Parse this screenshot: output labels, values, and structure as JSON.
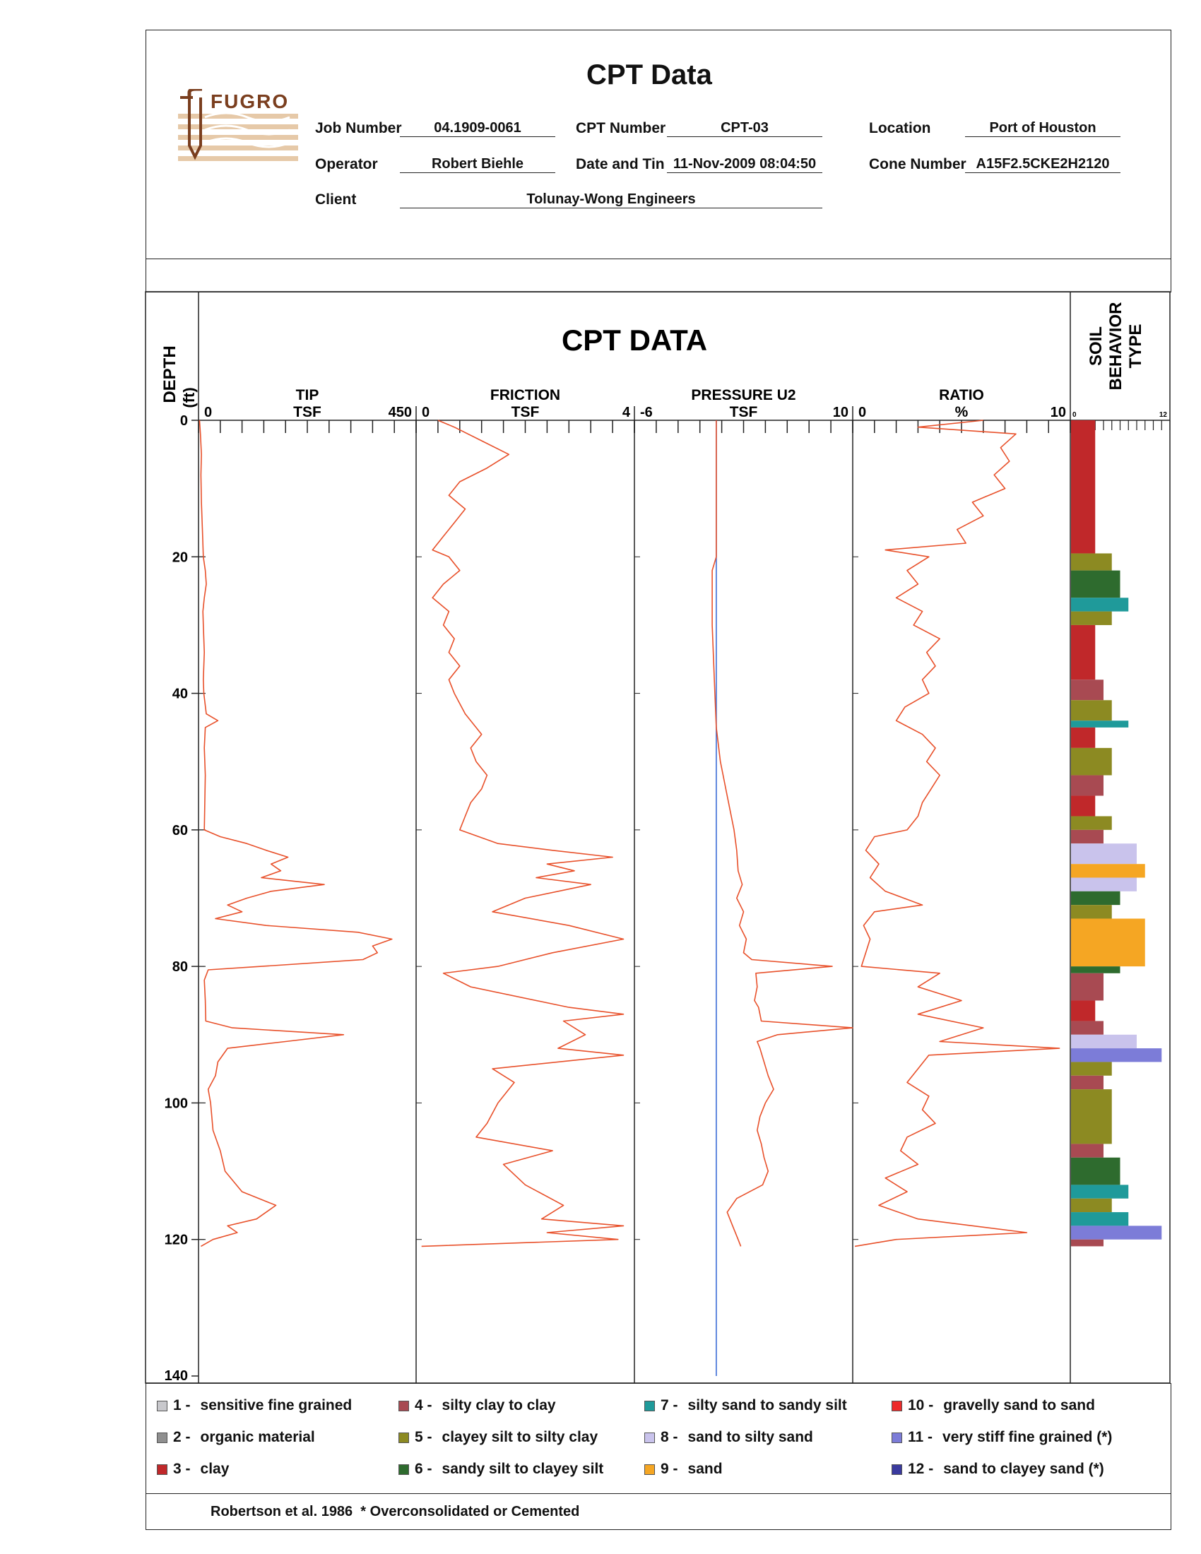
{
  "header": {
    "title": "CPT Data",
    "logo_text": "FUGRO",
    "job_number_label": "Job Number",
    "job_number": "04.1909-0061",
    "cpt_number_label": "CPT Number",
    "cpt_number": "CPT-03",
    "location_label": "Location",
    "location": "Port of Houston",
    "operator_label": "Operator",
    "operator": "Robert Biehle",
    "date_label": "Date and Tin",
    "date": "11-Nov-2009 08:04:50",
    "cone_label": "Cone Number",
    "cone_number": "A15F2.5CKE2H2120",
    "client_label": "Client",
    "client": "Tolunay-Wong Engineers"
  },
  "chart_data": {
    "type": "line",
    "title": "CPT DATA",
    "depth_axis": {
      "label": "DEPTH",
      "unit": "(ft)",
      "range": [
        0,
        140
      ],
      "ticks": [
        0,
        20,
        40,
        60,
        80,
        100,
        120,
        140
      ]
    },
    "panels": [
      {
        "name": "TIP",
        "unit": "TSF",
        "min_label": "0",
        "max_label": "450",
        "range": [
          0,
          450
        ],
        "color": "#e8502a",
        "points": [
          [
            0,
            2
          ],
          [
            2,
            4
          ],
          [
            5,
            6
          ],
          [
            8,
            5
          ],
          [
            12,
            6
          ],
          [
            16,
            8
          ],
          [
            20,
            10
          ],
          [
            22,
            14
          ],
          [
            24,
            16
          ],
          [
            26,
            12
          ],
          [
            28,
            9
          ],
          [
            30,
            10
          ],
          [
            34,
            12
          ],
          [
            38,
            10
          ],
          [
            40,
            11
          ],
          [
            43,
            16
          ],
          [
            44,
            40
          ],
          [
            45,
            14
          ],
          [
            48,
            12
          ],
          [
            52,
            14
          ],
          [
            56,
            13
          ],
          [
            60,
            12
          ],
          [
            61,
            45
          ],
          [
            62,
            100
          ],
          [
            63,
            140
          ],
          [
            64,
            185
          ],
          [
            65,
            150
          ],
          [
            66,
            170
          ],
          [
            67,
            130
          ],
          [
            68,
            260
          ],
          [
            69,
            150
          ],
          [
            70,
            100
          ],
          [
            71,
            60
          ],
          [
            72,
            90
          ],
          [
            73,
            35
          ],
          [
            74,
            140
          ],
          [
            75,
            330
          ],
          [
            76,
            400
          ],
          [
            77,
            360
          ],
          [
            78,
            370
          ],
          [
            79,
            340
          ],
          [
            80,
            130
          ],
          [
            80.5,
            20
          ],
          [
            82,
            12
          ],
          [
            85,
            14
          ],
          [
            88,
            15
          ],
          [
            89,
            70
          ],
          [
            90,
            300
          ],
          [
            91,
            180
          ],
          [
            92,
            60
          ],
          [
            94,
            40
          ],
          [
            96,
            35
          ],
          [
            98,
            20
          ],
          [
            100,
            25
          ],
          [
            104,
            30
          ],
          [
            107,
            45
          ],
          [
            110,
            55
          ],
          [
            113,
            90
          ],
          [
            115,
            160
          ],
          [
            117,
            120
          ],
          [
            118,
            60
          ],
          [
            119,
            80
          ],
          [
            120,
            30
          ],
          [
            121,
            5
          ]
        ]
      },
      {
        "name": "FRICTION",
        "unit": "TSF",
        "min_label": "0",
        "max_label": "4",
        "range": [
          0,
          4
        ],
        "color": "#e8502a",
        "points": [
          [
            0,
            0.4
          ],
          [
            1,
            0.7
          ],
          [
            3,
            1.2
          ],
          [
            5,
            1.7
          ],
          [
            7,
            1.3
          ],
          [
            9,
            0.8
          ],
          [
            11,
            0.6
          ],
          [
            13,
            0.9
          ],
          [
            15,
            0.7
          ],
          [
            17,
            0.5
          ],
          [
            19,
            0.3
          ],
          [
            20,
            0.6
          ],
          [
            22,
            0.8
          ],
          [
            24,
            0.5
          ],
          [
            26,
            0.3
          ],
          [
            28,
            0.6
          ],
          [
            30,
            0.5
          ],
          [
            32,
            0.7
          ],
          [
            34,
            0.6
          ],
          [
            36,
            0.8
          ],
          [
            38,
            0.6
          ],
          [
            40,
            0.7
          ],
          [
            43,
            0.9
          ],
          [
            46,
            1.2
          ],
          [
            48,
            1.0
          ],
          [
            50,
            1.1
          ],
          [
            52,
            1.3
          ],
          [
            54,
            1.2
          ],
          [
            56,
            1.0
          ],
          [
            58,
            0.9
          ],
          [
            60,
            0.8
          ],
          [
            62,
            1.5
          ],
          [
            63,
            2.5
          ],
          [
            64,
            3.6
          ],
          [
            65,
            2.4
          ],
          [
            66,
            2.9
          ],
          [
            67,
            2.2
          ],
          [
            68,
            3.2
          ],
          [
            70,
            2.0
          ],
          [
            72,
            1.4
          ],
          [
            74,
            2.8
          ],
          [
            76,
            3.8
          ],
          [
            78,
            2.5
          ],
          [
            80,
            1.5
          ],
          [
            81,
            0.5
          ],
          [
            83,
            1.0
          ],
          [
            86,
            2.8
          ],
          [
            87,
            3.8
          ],
          [
            88,
            2.7
          ],
          [
            90,
            3.1
          ],
          [
            92,
            2.6
          ],
          [
            93,
            3.8
          ],
          [
            95,
            1.4
          ],
          [
            97,
            1.8
          ],
          [
            100,
            1.5
          ],
          [
            103,
            1.3
          ],
          [
            105,
            1.1
          ],
          [
            107,
            2.5
          ],
          [
            109,
            1.6
          ],
          [
            112,
            2.0
          ],
          [
            115,
            2.7
          ],
          [
            117,
            2.3
          ],
          [
            118,
            3.8
          ],
          [
            119,
            2.4
          ],
          [
            120,
            3.7
          ],
          [
            121,
            0.1
          ]
        ]
      },
      {
        "name": "PRESSURE U2",
        "unit": "TSF",
        "min_label": "-6",
        "max_label": "10",
        "range": [
          -6,
          10
        ],
        "color": "#e8502a",
        "hydrostatic_color": "#3a6bd6",
        "hydrostatic": [
          [
            0,
            0
          ],
          [
            140,
            0
          ]
        ],
        "points": [
          [
            0,
            0
          ],
          [
            10,
            0
          ],
          [
            20,
            0
          ],
          [
            22,
            -0.3
          ],
          [
            30,
            -0.3
          ],
          [
            40,
            -0.1
          ],
          [
            45,
            0
          ],
          [
            50,
            0.3
          ],
          [
            55,
            0.8
          ],
          [
            60,
            1.3
          ],
          [
            63,
            1.5
          ],
          [
            66,
            1.6
          ],
          [
            68,
            1.9
          ],
          [
            70,
            1.5
          ],
          [
            72,
            2.0
          ],
          [
            74,
            1.7
          ],
          [
            76,
            2.2
          ],
          [
            78,
            2.0
          ],
          [
            79,
            2.6
          ],
          [
            80,
            8.5
          ],
          [
            81,
            2.9
          ],
          [
            83,
            3.0
          ],
          [
            85,
            2.8
          ],
          [
            86,
            3.1
          ],
          [
            87,
            3.2
          ],
          [
            88,
            3.3
          ],
          [
            89,
            10
          ],
          [
            90,
            4.5
          ],
          [
            91,
            3.0
          ],
          [
            92,
            3.2
          ],
          [
            94,
            3.5
          ],
          [
            96,
            3.8
          ],
          [
            98,
            4.2
          ],
          [
            100,
            3.6
          ],
          [
            102,
            3.2
          ],
          [
            104,
            3.0
          ],
          [
            106,
            3.3
          ],
          [
            108,
            3.5
          ],
          [
            110,
            3.8
          ],
          [
            112,
            3.4
          ],
          [
            114,
            1.5
          ],
          [
            116,
            0.8
          ],
          [
            118,
            1.2
          ],
          [
            120,
            1.6
          ],
          [
            121,
            1.8
          ]
        ]
      },
      {
        "name": "RATIO",
        "unit": "%",
        "min_label": "0",
        "max_label": "10",
        "range": [
          0,
          10
        ],
        "color": "#e8502a",
        "points": [
          [
            0,
            6
          ],
          [
            1,
            3
          ],
          [
            2,
            7.5
          ],
          [
            4,
            6.8
          ],
          [
            6,
            7.2
          ],
          [
            8,
            6.5
          ],
          [
            10,
            7.0
          ],
          [
            12,
            5.5
          ],
          [
            14,
            6.0
          ],
          [
            16,
            4.8
          ],
          [
            18,
            5.2
          ],
          [
            19,
            1.5
          ],
          [
            20,
            3.5
          ],
          [
            22,
            2.5
          ],
          [
            24,
            3.0
          ],
          [
            26,
            2.0
          ],
          [
            28,
            3.2
          ],
          [
            30,
            2.8
          ],
          [
            32,
            4.0
          ],
          [
            34,
            3.4
          ],
          [
            36,
            3.8
          ],
          [
            38,
            3.2
          ],
          [
            40,
            3.5
          ],
          [
            42,
            2.4
          ],
          [
            44,
            2.0
          ],
          [
            46,
            3.2
          ],
          [
            48,
            3.8
          ],
          [
            50,
            3.4
          ],
          [
            52,
            4.0
          ],
          [
            54,
            3.6
          ],
          [
            56,
            3.2
          ],
          [
            58,
            3.0
          ],
          [
            60,
            2.5
          ],
          [
            61,
            1.0
          ],
          [
            63,
            0.6
          ],
          [
            65,
            1.2
          ],
          [
            67,
            0.8
          ],
          [
            69,
            1.5
          ],
          [
            71,
            3.2
          ],
          [
            72,
            1.0
          ],
          [
            74,
            0.5
          ],
          [
            76,
            0.8
          ],
          [
            78,
            0.6
          ],
          [
            80,
            0.4
          ],
          [
            81,
            4.0
          ],
          [
            83,
            3.0
          ],
          [
            85,
            5.0
          ],
          [
            87,
            3.0
          ],
          [
            89,
            6.0
          ],
          [
            91,
            4.0
          ],
          [
            92,
            9.5
          ],
          [
            93,
            3.5
          ],
          [
            95,
            3.0
          ],
          [
            97,
            2.5
          ],
          [
            99,
            3.5
          ],
          [
            101,
            3.2
          ],
          [
            103,
            3.8
          ],
          [
            105,
            2.5
          ],
          [
            107,
            2.2
          ],
          [
            109,
            3.0
          ],
          [
            111,
            1.5
          ],
          [
            113,
            2.5
          ],
          [
            115,
            1.2
          ],
          [
            117,
            3.0
          ],
          [
            119,
            8.0
          ],
          [
            120,
            2.0
          ],
          [
            121,
            0.1
          ]
        ]
      }
    ],
    "soil_panel": {
      "label_lines": [
        "SOIL",
        "BEHAVIOR",
        "TYPE"
      ],
      "min_label": "0",
      "max_label": "12",
      "range": [
        0,
        12
      ],
      "intervals": [
        [
          0,
          19.5,
          3
        ],
        [
          19.5,
          22,
          5
        ],
        [
          22,
          26,
          6
        ],
        [
          26,
          28,
          7
        ],
        [
          28,
          30,
          5
        ],
        [
          30,
          38,
          3
        ],
        [
          38,
          41,
          4
        ],
        [
          41,
          44,
          5
        ],
        [
          44,
          45,
          7
        ],
        [
          45,
          48,
          3
        ],
        [
          48,
          52,
          5
        ],
        [
          52,
          55,
          4
        ],
        [
          55,
          58,
          3
        ],
        [
          58,
          60,
          5
        ],
        [
          60,
          62,
          4
        ],
        [
          62,
          65,
          8
        ],
        [
          65,
          67,
          9
        ],
        [
          67,
          69,
          8
        ],
        [
          69,
          71,
          6
        ],
        [
          71,
          73,
          5
        ],
        [
          73,
          80,
          9
        ],
        [
          80,
          81,
          6
        ],
        [
          81,
          85,
          4
        ],
        [
          85,
          88,
          3
        ],
        [
          88,
          90,
          4
        ],
        [
          90,
          92,
          8
        ],
        [
          92,
          94,
          11
        ],
        [
          94,
          96,
          5
        ],
        [
          96,
          98,
          4
        ],
        [
          98,
          106,
          5
        ],
        [
          106,
          108,
          4
        ],
        [
          108,
          112,
          6
        ],
        [
          112,
          114,
          7
        ],
        [
          114,
          116,
          5
        ],
        [
          116,
          118,
          7
        ],
        [
          118,
          120,
          11
        ],
        [
          120,
          121,
          4
        ]
      ]
    }
  },
  "legend": {
    "items": [
      {
        "num": "1 -",
        "text": "sensitive fine grained",
        "color": "#c8c8cc"
      },
      {
        "num": "2 -",
        "text": "organic material",
        "color": "#8f8f8f"
      },
      {
        "num": "3 -",
        "text": "clay",
        "color": "#c0282a"
      },
      {
        "num": "4 -",
        "text": "silty clay to clay",
        "color": "#a84a52"
      },
      {
        "num": "5 -",
        "text": "clayey silt to silty clay",
        "color": "#8c8a22"
      },
      {
        "num": "6 -",
        "text": "sandy silt to clayey silt",
        "color": "#2e6b2e"
      },
      {
        "num": "7 -",
        "text": "silty sand to sandy silt",
        "color": "#1f9a9a"
      },
      {
        "num": "8 -",
        "text": "sand to silty sand",
        "color": "#c9c3ec"
      },
      {
        "num": "9 -",
        "text": "sand",
        "color": "#f5a623"
      },
      {
        "num": "10 -",
        "text": "gravelly sand to sand",
        "color": "#ee2b2b"
      },
      {
        "num": "11 -",
        "text": "very stiff fine grained (*)",
        "color": "#7c7cd8"
      },
      {
        "num": "12 -",
        "text": "sand to clayey sand (*)",
        "color": "#3a3a9e"
      }
    ],
    "footer": "Robertson et al. 1986  * Overconsolidated or Cemented"
  }
}
